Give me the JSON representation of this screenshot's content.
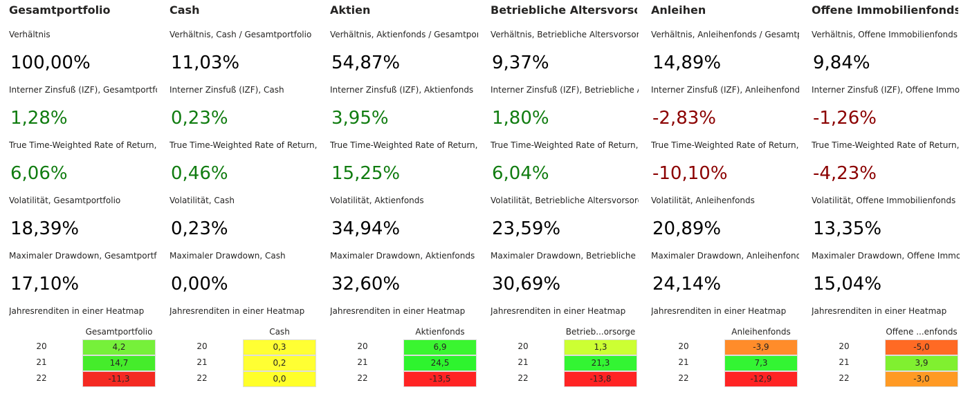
{
  "columns": [
    {
      "title": "Gesamtportfolio",
      "metrics": [
        {
          "label": "Verhältnis",
          "value": "100,00%",
          "color": "#000000"
        },
        {
          "label": "Interner Zinsfuß (IZF), Gesamtportfoli",
          "value": "1,28%",
          "color": "#107c10"
        },
        {
          "label": "True Time-Weighted Rate of Return,",
          "value": "6,06%",
          "color": "#107c10"
        },
        {
          "label": "Volatilität, Gesamtportfolio",
          "value": "18,39%",
          "color": "#000000"
        },
        {
          "label": "Maximaler Drawdown, Gesamtportfo",
          "value": "17,10%",
          "color": "#000000"
        }
      ],
      "heatmap": {
        "label": "Jahresrenditen in einer Heatmap",
        "header": "Gesamtportfolio",
        "rows": [
          {
            "year": "20",
            "value": "4,2",
            "color": "#76f03a"
          },
          {
            "year": "21",
            "value": "14,7",
            "color": "#45ec2b"
          },
          {
            "year": "22",
            "value": "-11,3",
            "color": "#f42a22"
          }
        ]
      }
    },
    {
      "title": "Cash",
      "metrics": [
        {
          "label": "Verhältnis, Cash / Gesamtportfolio",
          "value": "11,03%",
          "color": "#000000"
        },
        {
          "label": "Interner Zinsfuß (IZF), Cash",
          "value": "0,23%",
          "color": "#107c10"
        },
        {
          "label": "True Time-Weighted Rate of Return,",
          "value": "0,46%",
          "color": "#107c10"
        },
        {
          "label": "Volatilität, Cash",
          "value": "0,23%",
          "color": "#000000"
        },
        {
          "label": "Maximaler Drawdown, Cash",
          "value": "0,00%",
          "color": "#000000"
        }
      ],
      "heatmap": {
        "label": "Jahresrenditen in einer Heatmap",
        "header": "Cash",
        "rows": [
          {
            "year": "20",
            "value": "0,3",
            "color": "#ffff33"
          },
          {
            "year": "21",
            "value": "0,2",
            "color": "#ffff33"
          },
          {
            "year": "22",
            "value": "0,0",
            "color": "#ffff2a"
          }
        ]
      }
    },
    {
      "title": "Aktien",
      "metrics": [
        {
          "label": "Verhältnis, Aktienfonds / Gesamtport",
          "value": "54,87%",
          "color": "#000000"
        },
        {
          "label": "Interner Zinsfuß (IZF), Aktienfonds",
          "value": "3,95%",
          "color": "#107c10"
        },
        {
          "label": "True Time-Weighted Rate of Return,",
          "value": "15,25%",
          "color": "#107c10"
        },
        {
          "label": "Volatilität, Aktienfonds",
          "value": "34,94%",
          "color": "#000000"
        },
        {
          "label": "Maximaler Drawdown, Aktienfonds",
          "value": "32,60%",
          "color": "#000000"
        }
      ],
      "heatmap": {
        "label": "Jahresrenditen in einer Heatmap",
        "header": "Aktienfonds",
        "rows": [
          {
            "year": "20",
            "value": "6,9",
            "color": "#3af530"
          },
          {
            "year": "21",
            "value": "24,5",
            "color": "#2ef42e"
          },
          {
            "year": "22",
            "value": "-13,5",
            "color": "#ff2424"
          }
        ]
      }
    },
    {
      "title": "Betriebliche Altersvorsor",
      "metrics": [
        {
          "label": "Verhältnis, Betriebliche Altersvorsorg",
          "value": "9,37%",
          "color": "#000000"
        },
        {
          "label": "Interner Zinsfuß (IZF), Betriebliche Alt",
          "value": "1,80%",
          "color": "#107c10"
        },
        {
          "label": "True Time-Weighted Rate of Return,",
          "value": "6,04%",
          "color": "#107c10"
        },
        {
          "label": "Volatilität, Betriebliche Altersvorsorg",
          "value": "23,59%",
          "color": "#000000"
        },
        {
          "label": "Maximaler Drawdown, Betriebliche A",
          "value": "30,69%",
          "color": "#000000"
        }
      ],
      "heatmap": {
        "label": "Jahresrenditen in einer Heatmap",
        "header": "Betrieb...orsorge",
        "rows": [
          {
            "year": "20",
            "value": "1,3",
            "color": "#ccff33"
          },
          {
            "year": "21",
            "value": "21,3",
            "color": "#33f533"
          },
          {
            "year": "22",
            "value": "-13,8",
            "color": "#ff2424"
          }
        ]
      }
    },
    {
      "title": "Anleihen",
      "metrics": [
        {
          "label": "Verhältnis, Anleihenfonds / Gesamtp",
          "value": "14,89%",
          "color": "#000000"
        },
        {
          "label": "Interner Zinsfuß (IZF), Anleihenfonds",
          "value": "-2,83%",
          "color": "#8b0000"
        },
        {
          "label": "True Time-Weighted Rate of Return,",
          "value": "-10,10%",
          "color": "#8b0000"
        },
        {
          "label": "Volatilität, Anleihenfonds",
          "value": "20,89%",
          "color": "#000000"
        },
        {
          "label": "Maximaler Drawdown, Anleihenfonds",
          "value": "24,14%",
          "color": "#000000"
        }
      ],
      "heatmap": {
        "label": "Jahresrenditen in einer Heatmap",
        "header": "Anleihenfonds",
        "rows": [
          {
            "year": "20",
            "value": "-3,9",
            "color": "#ff8c2a"
          },
          {
            "year": "21",
            "value": "7,3",
            "color": "#33f533"
          },
          {
            "year": "22",
            "value": "-12,9",
            "color": "#ff2424"
          }
        ]
      }
    },
    {
      "title": "Offene Immobilienfonds",
      "metrics": [
        {
          "label": "Verhältnis, Offene Immobilienfonds /",
          "value": "9,84%",
          "color": "#000000"
        },
        {
          "label": "Interner Zinsfuß (IZF), Offene Immobi",
          "value": "-1,26%",
          "color": "#8b0000"
        },
        {
          "label": "True Time-Weighted Rate of Return,",
          "value": "-4,23%",
          "color": "#8b0000"
        },
        {
          "label": "Volatilität, Offene Immobilienfonds",
          "value": "13,35%",
          "color": "#000000"
        },
        {
          "label": "Maximaler Drawdown, Offene Immobi",
          "value": "15,04%",
          "color": "#000000"
        }
      ],
      "heatmap": {
        "label": "Jahresrenditen in einer Heatmap",
        "header": "Offene ...enfonds",
        "rows": [
          {
            "year": "20",
            "value": "-5,0",
            "color": "#ff6a24"
          },
          {
            "year": "21",
            "value": "3,9",
            "color": "#80f030"
          },
          {
            "year": "22",
            "value": "-3,0",
            "color": "#ff9a24"
          }
        ]
      }
    }
  ]
}
